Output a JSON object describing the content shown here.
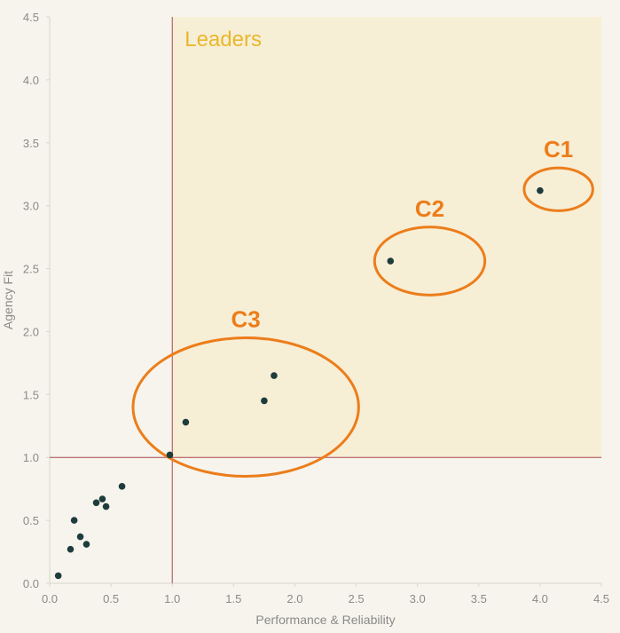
{
  "chart_data": {
    "type": "scatter",
    "xlabel": "Performance & Reliability",
    "ylabel": "Agency Fit",
    "xlim": [
      0,
      4.5
    ],
    "ylim": [
      0,
      4.5
    ],
    "x_ticks": [
      "0.0",
      "0.5",
      "1.0",
      "1.5",
      "2.0",
      "2.5",
      "3.0",
      "3.5",
      "4.0",
      "4.5"
    ],
    "y_ticks": [
      "0.0",
      "0.5",
      "1.0",
      "1.5",
      "2.0",
      "2.5",
      "3.0",
      "3.5",
      "4.0",
      "4.5"
    ],
    "grid": false,
    "reference_lines": {
      "x": 1.0,
      "y": 1.0
    },
    "quadrant": {
      "label": "Leaders",
      "x_min": 1.0,
      "y_min": 1.0
    },
    "points": [
      {
        "x": 0.07,
        "y": 0.06
      },
      {
        "x": 0.17,
        "y": 0.27
      },
      {
        "x": 0.2,
        "y": 0.5
      },
      {
        "x": 0.25,
        "y": 0.37
      },
      {
        "x": 0.3,
        "y": 0.31
      },
      {
        "x": 0.38,
        "y": 0.64
      },
      {
        "x": 0.43,
        "y": 0.67
      },
      {
        "x": 0.46,
        "y": 0.61
      },
      {
        "x": 0.59,
        "y": 0.77
      },
      {
        "x": 0.98,
        "y": 1.02
      },
      {
        "x": 1.11,
        "y": 1.28
      },
      {
        "x": 1.75,
        "y": 1.45
      },
      {
        "x": 1.83,
        "y": 1.65
      },
      {
        "x": 2.78,
        "y": 2.56
      },
      {
        "x": 4.0,
        "y": 3.12
      }
    ],
    "clusters": [
      {
        "label": "C1",
        "cx": 4.15,
        "cy": 3.13,
        "rx": 0.28,
        "ry": 0.17
      },
      {
        "label": "C2",
        "cx": 3.1,
        "cy": 2.56,
        "rx": 0.45,
        "ry": 0.27
      },
      {
        "label": "C3",
        "cx": 1.6,
        "cy": 1.4,
        "rx": 0.92,
        "ry": 0.55
      }
    ]
  },
  "colors": {
    "background": "#f6f4ec",
    "quadrant_fill": "#f7eed6",
    "reference_line": "#a94a52",
    "point": "#1e3c3c",
    "cluster": "#ec7d1a",
    "leaders_label": "#e9b82c",
    "axis": "#d8d6cd",
    "text": "#8a8a8a"
  }
}
